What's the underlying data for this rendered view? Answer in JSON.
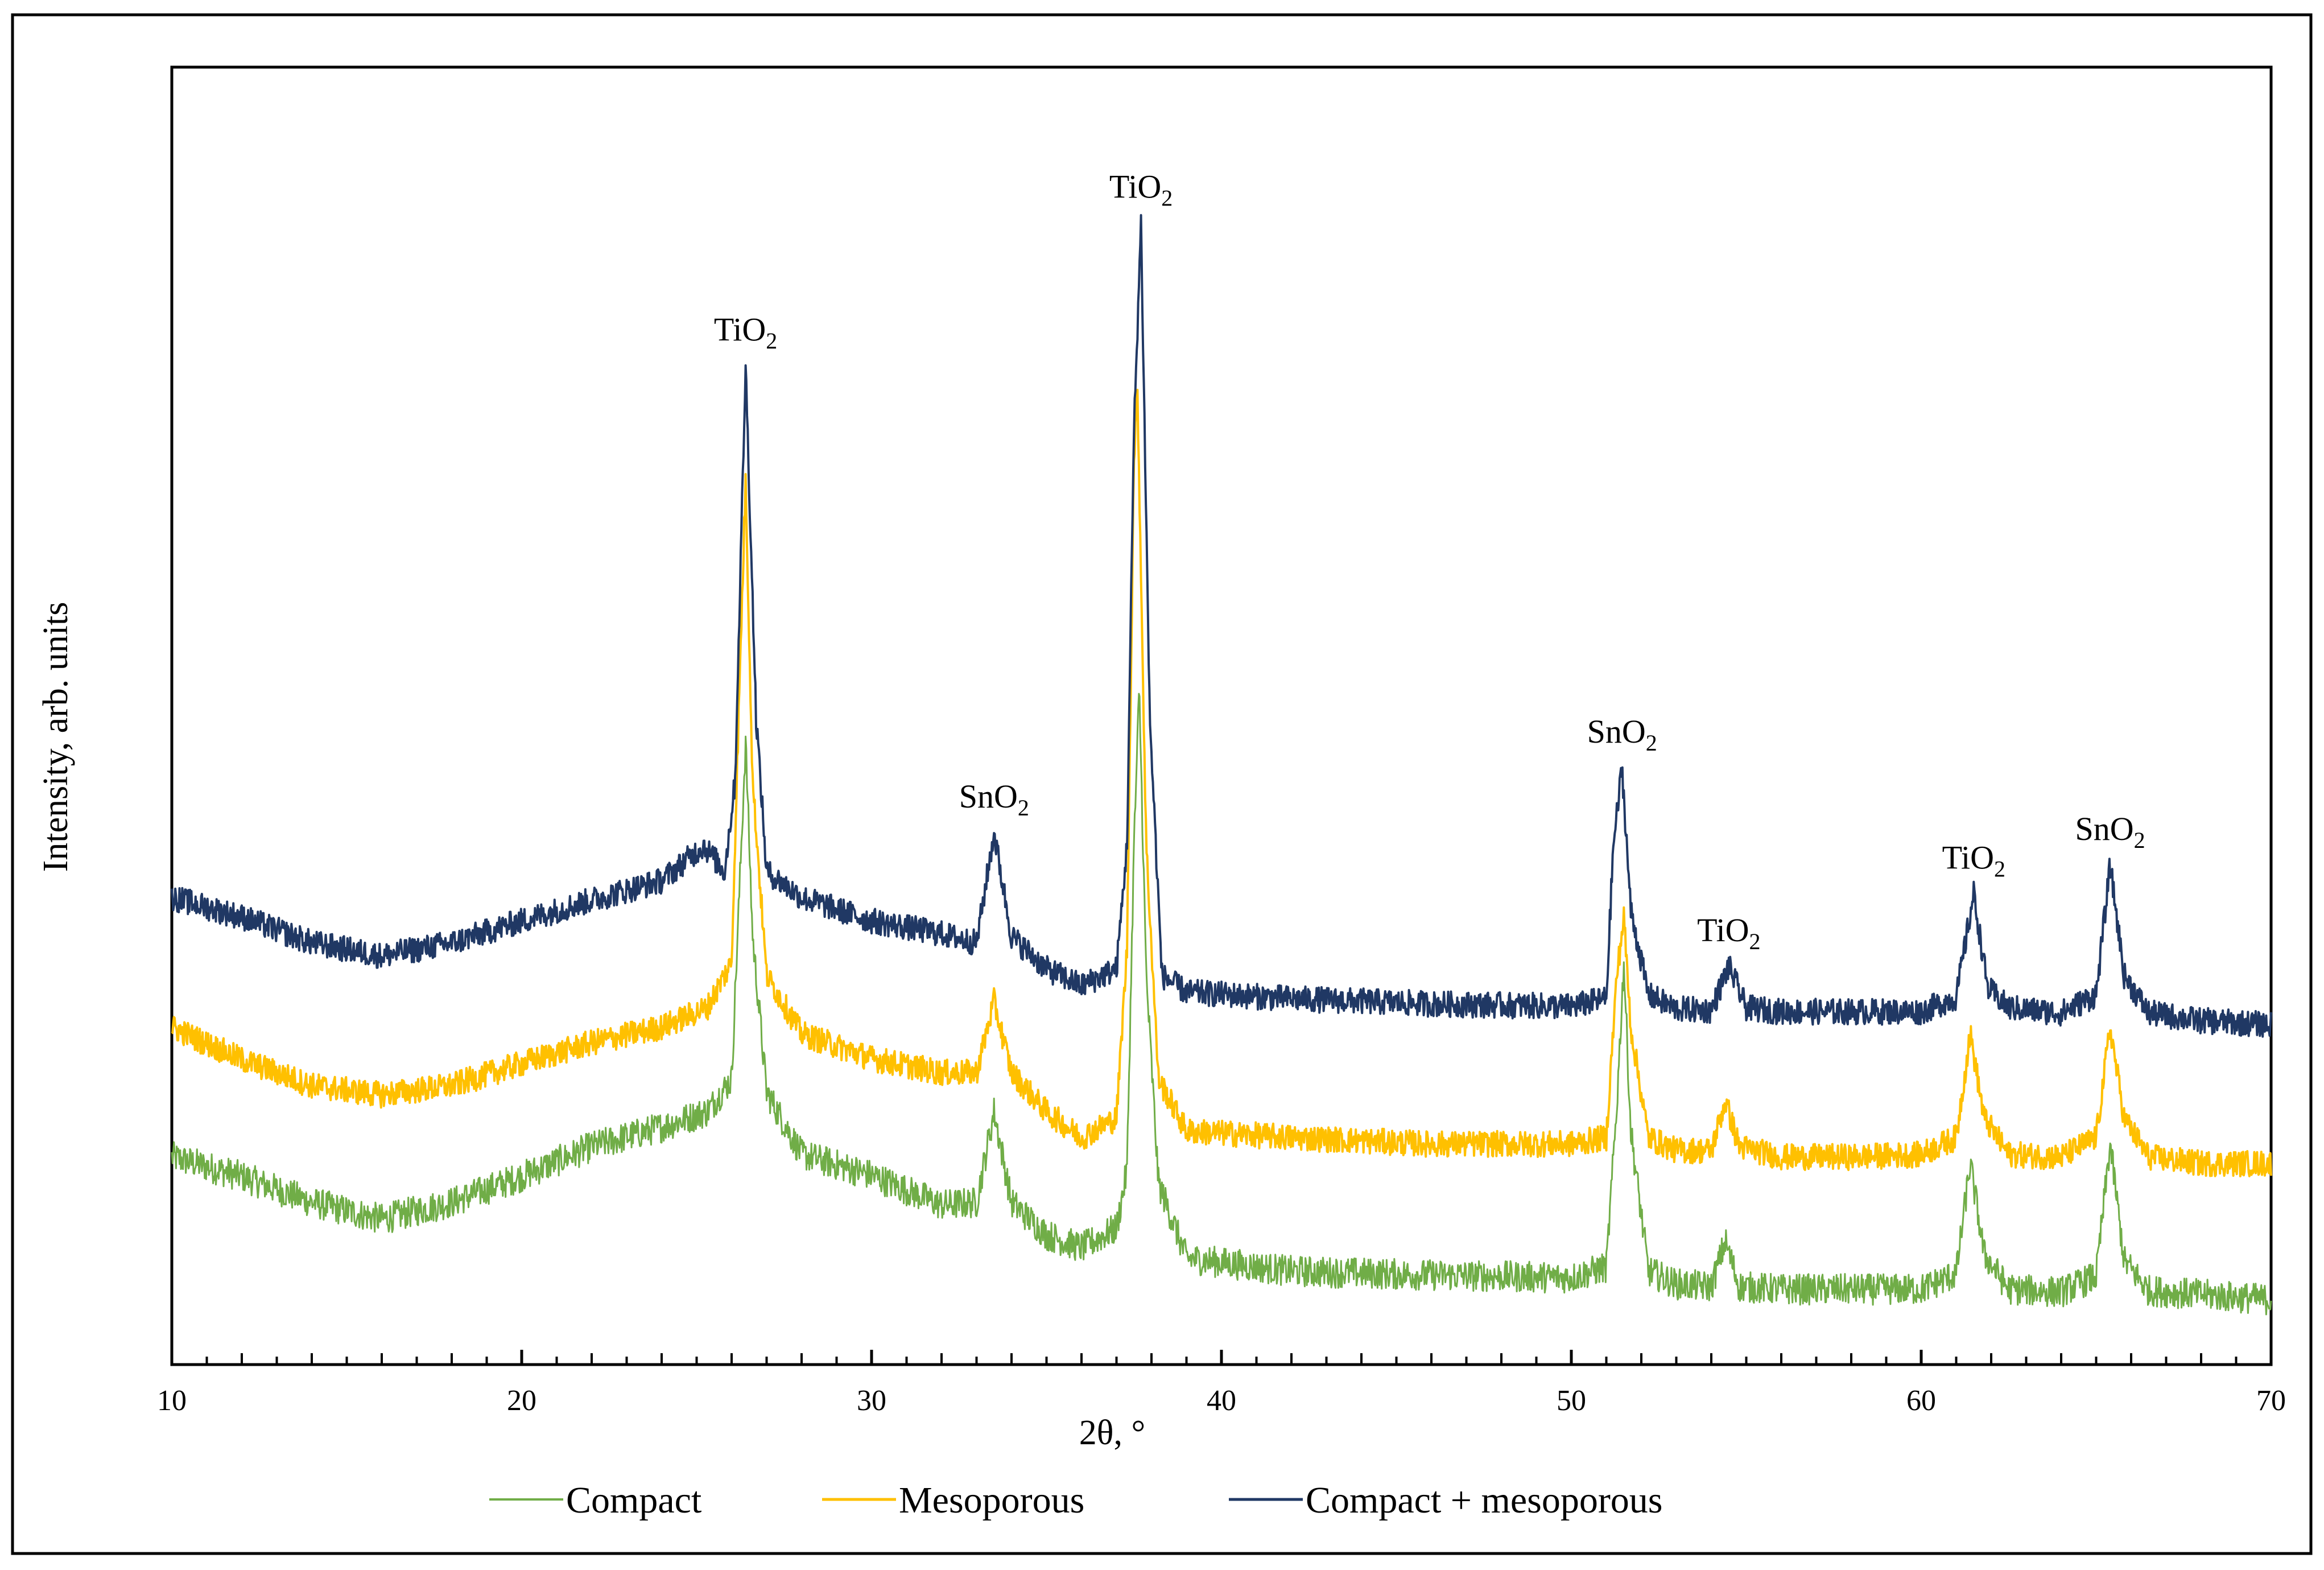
{
  "chart_data": {
    "type": "line",
    "title": "",
    "xlabel": "2θ, °",
    "ylabel": "Intensity, arb. units",
    "xlim": [
      10,
      70
    ],
    "ylim": [
      0,
      100
    ],
    "x_ticks": [
      10,
      20,
      30,
      40,
      50,
      60,
      70
    ],
    "x_tick_labels": [
      "10",
      "20",
      "30",
      "40",
      "50",
      "60",
      "70"
    ],
    "y_ticks_shown": false,
    "grid": false,
    "legend_position": "bottom",
    "series": [
      {
        "name": "Compact",
        "color": "#70ad47",
        "points": [
          [
            10,
            16
          ],
          [
            12,
            14.5
          ],
          [
            14,
            12.5
          ],
          [
            16,
            11.2
          ],
          [
            18,
            12.5
          ],
          [
            20,
            14.5
          ],
          [
            22,
            16.8
          ],
          [
            24,
            18.3
          ],
          [
            25.3,
            19.5
          ],
          [
            26,
            22
          ],
          [
            26.2,
            35
          ],
          [
            26.4,
            48
          ],
          [
            26.6,
            33
          ],
          [
            27,
            21
          ],
          [
            28,
            16.2
          ],
          [
            30,
            14.6
          ],
          [
            32,
            12.3
          ],
          [
            33,
            12.5
          ],
          [
            33.5,
            19.5
          ],
          [
            34,
            12.5
          ],
          [
            35,
            10
          ],
          [
            36,
            9
          ],
          [
            37,
            10.5
          ],
          [
            37.3,
            15
          ],
          [
            37.5,
            40
          ],
          [
            37.65,
            52
          ],
          [
            37.85,
            30
          ],
          [
            38.2,
            14
          ],
          [
            39,
            8.2
          ],
          [
            42,
            7.2
          ],
          [
            46,
            6.9
          ],
          [
            50,
            6.7
          ],
          [
            51,
            7.5
          ],
          [
            51.3,
            20
          ],
          [
            51.5,
            31
          ],
          [
            51.7,
            18
          ],
          [
            52.2,
            7.2
          ],
          [
            53,
            6.2
          ],
          [
            54,
            6
          ],
          [
            54.4,
            9.5
          ],
          [
            54.8,
            6
          ],
          [
            56,
            5.8
          ],
          [
            58,
            5.8
          ],
          [
            60,
            5.8
          ],
          [
            61,
            7
          ],
          [
            61.4,
            15.5
          ],
          [
            61.8,
            8.5
          ],
          [
            62.5,
            5.8
          ],
          [
            64,
            5.6
          ],
          [
            65,
            6.8
          ],
          [
            65.4,
            17
          ],
          [
            65.8,
            8
          ],
          [
            66.5,
            5.7
          ],
          [
            68,
            5.4
          ],
          [
            70,
            5
          ]
        ],
        "peaks": [
          {
            "x": 26.4,
            "y": 48,
            "label": "TiO2"
          },
          {
            "x": 33.5,
            "y": 19.5,
            "label": "SnO2"
          },
          {
            "x": 37.65,
            "y": 52,
            "label": "TiO2"
          },
          {
            "x": 51.5,
            "y": 31,
            "label": "SnO2"
          },
          {
            "x": 54.4,
            "y": 9.5,
            "label": "TiO2"
          },
          {
            "x": 61.4,
            "y": 15.5,
            "label": "TiO2"
          },
          {
            "x": 65.4,
            "y": 17,
            "label": "SnO2"
          }
        ]
      },
      {
        "name": "Mesoporous",
        "color": "#ffc000",
        "points": [
          [
            10,
            26
          ],
          [
            12,
            23.5
          ],
          [
            14,
            21.5
          ],
          [
            16,
            20.8
          ],
          [
            18,
            21.5
          ],
          [
            20,
            23.2
          ],
          [
            22,
            24.8
          ],
          [
            24,
            26
          ],
          [
            25.3,
            27.5
          ],
          [
            26,
            31
          ],
          [
            26.2,
            50
          ],
          [
            26.4,
            68
          ],
          [
            26.6,
            45
          ],
          [
            27,
            30
          ],
          [
            28,
            25.5
          ],
          [
            30,
            23.6
          ],
          [
            32,
            22.5
          ],
          [
            33,
            22.5
          ],
          [
            33.5,
            28
          ],
          [
            34,
            22.5
          ],
          [
            35,
            19.5
          ],
          [
            36,
            17.5
          ],
          [
            37,
            19
          ],
          [
            37.3,
            32
          ],
          [
            37.5,
            70
          ],
          [
            37.6,
            75
          ],
          [
            37.85,
            40
          ],
          [
            38.2,
            22
          ],
          [
            39,
            18
          ],
          [
            42,
            17.5
          ],
          [
            46,
            17
          ],
          [
            50,
            17
          ],
          [
            51,
            17.5
          ],
          [
            51.3,
            30
          ],
          [
            51.5,
            34.5
          ],
          [
            51.7,
            26
          ],
          [
            52.2,
            17.5
          ],
          [
            53,
            16.5
          ],
          [
            54,
            16.5
          ],
          [
            54.4,
            20.3
          ],
          [
            54.8,
            16.8
          ],
          [
            56,
            16
          ],
          [
            58,
            16
          ],
          [
            60,
            16.2
          ],
          [
            61,
            17.5
          ],
          [
            61.4,
            25.5
          ],
          [
            61.8,
            19
          ],
          [
            62.5,
            16.2
          ],
          [
            64,
            16
          ],
          [
            65,
            17.5
          ],
          [
            65.4,
            26
          ],
          [
            65.8,
            19
          ],
          [
            66.5,
            16
          ],
          [
            68,
            15.5
          ],
          [
            70,
            15.5
          ]
        ],
        "peaks": [
          {
            "x": 26.4,
            "y": 68,
            "label": "TiO2"
          },
          {
            "x": 33.5,
            "y": 28,
            "label": "SnO2"
          },
          {
            "x": 37.6,
            "y": 75,
            "label": "TiO2"
          },
          {
            "x": 51.5,
            "y": 34.5,
            "label": "SnO2"
          },
          {
            "x": 54.4,
            "y": 20.3,
            "label": "TiO2"
          },
          {
            "x": 61.4,
            "y": 25.5,
            "label": "TiO2"
          },
          {
            "x": 65.4,
            "y": 26,
            "label": "SnO2"
          }
        ]
      },
      {
        "name": "Compact + mesoporous",
        "color": "#203864",
        "points": [
          [
            10,
            36
          ],
          [
            12,
            34.5
          ],
          [
            14,
            32.5
          ],
          [
            16,
            31.5
          ],
          [
            18,
            32.5
          ],
          [
            20,
            34.2
          ],
          [
            22,
            35.8
          ],
          [
            24,
            37.3
          ],
          [
            25.2,
            40
          ],
          [
            25.8,
            38
          ],
          [
            26.1,
            45
          ],
          [
            26.4,
            77
          ],
          [
            26.7,
            50
          ],
          [
            27,
            38
          ],
          [
            28,
            36
          ],
          [
            30,
            34.2
          ],
          [
            32,
            33.2
          ],
          [
            33,
            32.5
          ],
          [
            33.5,
            41
          ],
          [
            34,
            33
          ],
          [
            35,
            30.5
          ],
          [
            36,
            29.2
          ],
          [
            37,
            30.5
          ],
          [
            37.3,
            40
          ],
          [
            37.5,
            72
          ],
          [
            37.7,
            88
          ],
          [
            37.95,
            50
          ],
          [
            38.3,
            30
          ],
          [
            39,
            28.7
          ],
          [
            42,
            28.2
          ],
          [
            46,
            27.8
          ],
          [
            50,
            27.6
          ],
          [
            51,
            28.2
          ],
          [
            51.2,
            40
          ],
          [
            51.45,
            46
          ],
          [
            51.7,
            35
          ],
          [
            52.2,
            28.5
          ],
          [
            53,
            27.4
          ],
          [
            54,
            27.3
          ],
          [
            54.5,
            30.7
          ],
          [
            55,
            27.5
          ],
          [
            56,
            27.2
          ],
          [
            58,
            27.2
          ],
          [
            60,
            27.2
          ],
          [
            61,
            28.3
          ],
          [
            61.5,
            36.3
          ],
          [
            61.9,
            29
          ],
          [
            62.5,
            27.5
          ],
          [
            64,
            27.1
          ],
          [
            65,
            28.5
          ],
          [
            65.4,
            38.5
          ],
          [
            65.8,
            30
          ],
          [
            66.5,
            27.1
          ],
          [
            68,
            26.5
          ],
          [
            70,
            26.2
          ]
        ],
        "peaks": [
          {
            "x": 26.4,
            "y": 77,
            "label": "TiO2"
          },
          {
            "x": 33.5,
            "y": 41,
            "label": "SnO2"
          },
          {
            "x": 37.7,
            "y": 88,
            "label": "TiO2"
          },
          {
            "x": 51.45,
            "y": 46,
            "label": "SnO2"
          },
          {
            "x": 54.5,
            "y": 30.7,
            "label": "TiO2"
          },
          {
            "x": 61.5,
            "y": 36.3,
            "label": "TiO2"
          },
          {
            "x": 65.4,
            "y": 38.5,
            "label": "SnO2"
          }
        ]
      }
    ],
    "annotations": [
      {
        "x": 26.4,
        "y": 77,
        "base": "TiO",
        "subscript": "2"
      },
      {
        "x": 33.5,
        "y": 41,
        "base": "SnO",
        "subscript": "2"
      },
      {
        "x": 37.7,
        "y": 88,
        "base": "TiO",
        "subscript": "2"
      },
      {
        "x": 51.45,
        "y": 46,
        "base": "SnO",
        "subscript": "2"
      },
      {
        "x": 54.5,
        "y": 30.7,
        "base": "TiO",
        "subscript": "2"
      },
      {
        "x": 61.5,
        "y": 36.3,
        "base": "TiO",
        "subscript": "2"
      },
      {
        "x": 65.4,
        "y": 38.5,
        "base": "SnO",
        "subscript": "2"
      }
    ]
  }
}
